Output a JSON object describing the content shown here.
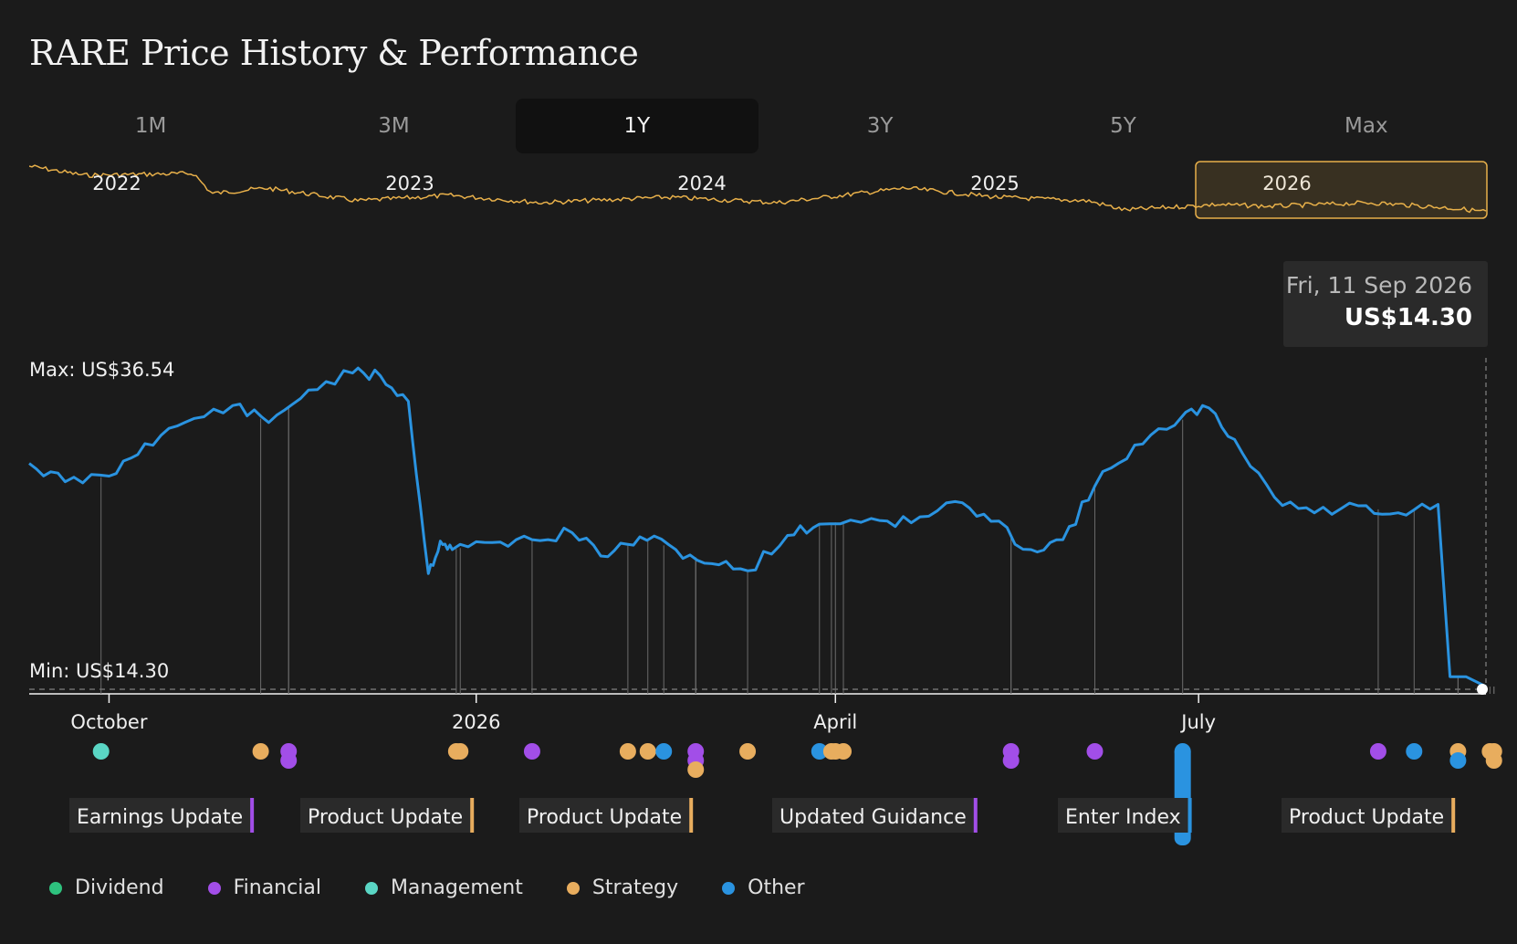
{
  "title": "RARE Price History & Performance",
  "tabs": [
    {
      "label": "1M",
      "active": false
    },
    {
      "label": "3M",
      "active": false
    },
    {
      "label": "1Y",
      "active": true
    },
    {
      "label": "3Y",
      "active": false
    },
    {
      "label": "5Y",
      "active": false
    },
    {
      "label": "Max",
      "active": false
    }
  ],
  "navigator": {
    "years": [
      "2022",
      "2023",
      "2024",
      "2025",
      "2026"
    ],
    "selected_year": "2026",
    "line_color": "#e8b04a"
  },
  "tooltip": {
    "date": "Fri, 11 Sep 2026",
    "price": "US$14.30"
  },
  "max_label": "Max: US$36.54",
  "min_label": "Min: US$14.30",
  "chart_data": {
    "type": "line",
    "title": "RARE Price History & Performance",
    "series_color": "#2a93e0",
    "ylim": [
      14.3,
      36.54
    ],
    "x_ticks": [
      "October",
      "2026",
      "April",
      "July"
    ],
    "x_tick_dates": [
      "2025-10-01",
      "2026-01-01",
      "2026-04-01",
      "2026-07-01"
    ],
    "x_range": [
      "2025-09-11",
      "2026-09-11"
    ],
    "x": [
      "2025-09-11",
      "2025-09-20",
      "2025-10-01",
      "2025-10-10",
      "2025-10-20",
      "2025-11-01",
      "2025-11-10",
      "2025-11-20",
      "2025-12-01",
      "2025-12-08",
      "2025-12-15",
      "2025-12-20",
      "2025-12-23",
      "2025-12-26",
      "2026-01-05",
      "2026-01-15",
      "2026-01-25",
      "2026-02-03",
      "2026-02-11",
      "2026-02-20",
      "2026-03-01",
      "2026-03-10",
      "2026-03-20",
      "2026-03-28",
      "2026-04-10",
      "2026-04-20",
      "2026-05-01",
      "2026-05-10",
      "2026-05-20",
      "2026-05-28",
      "2026-06-05",
      "2026-06-15",
      "2026-06-25",
      "2026-07-02",
      "2026-07-10",
      "2026-07-20",
      "2026-07-30",
      "2026-08-10",
      "2026-08-20",
      "2026-08-30",
      "2026-09-02",
      "2026-09-06",
      "2026-09-11"
    ],
    "values": [
      30.1,
      28.8,
      29.2,
      31.5,
      33.0,
      34.2,
      33.0,
      35.3,
      36.5,
      36.3,
      34.5,
      22.3,
      24.6,
      24.0,
      24.5,
      24.7,
      25.2,
      23.5,
      24.9,
      24.0,
      23.0,
      22.5,
      25.0,
      25.8,
      26.2,
      25.9,
      27.4,
      26.0,
      24.0,
      24.7,
      28.5,
      31.4,
      32.8,
      34.2,
      31.8,
      27.7,
      26.6,
      27.1,
      26.6,
      27.2,
      15.0,
      15.0,
      14.3
    ],
    "events": [
      {
        "date": "2025-09-29",
        "category": "Management"
      },
      {
        "date": "2025-11-08",
        "category": "Strategy"
      },
      {
        "date": "2025-11-15",
        "category": "Financial"
      },
      {
        "date": "2025-11-15",
        "category": "Financial"
      },
      {
        "date": "2025-12-27",
        "category": "Strategy"
      },
      {
        "date": "2025-12-28",
        "category": "Strategy"
      },
      {
        "date": "2026-01-15",
        "category": "Financial"
      },
      {
        "date": "2026-02-08",
        "category": "Strategy"
      },
      {
        "date": "2026-02-13",
        "category": "Strategy"
      },
      {
        "date": "2026-02-17",
        "category": "Other"
      },
      {
        "date": "2026-02-25",
        "category": "Financial"
      },
      {
        "date": "2026-02-25",
        "category": "Financial"
      },
      {
        "date": "2026-02-25",
        "category": "Strategy"
      },
      {
        "date": "2026-03-10",
        "category": "Strategy"
      },
      {
        "date": "2026-04-01",
        "category": "Strategy"
      },
      {
        "date": "2026-03-28",
        "category": "Other"
      },
      {
        "date": "2026-03-31",
        "category": "Strategy"
      },
      {
        "date": "2026-04-03",
        "category": "Strategy"
      },
      {
        "date": "2026-05-15",
        "category": "Financial"
      },
      {
        "date": "2026-05-15",
        "category": "Financial"
      },
      {
        "date": "2026-06-05",
        "category": "Financial"
      },
      {
        "date": "2026-06-27",
        "category": "Other"
      },
      {
        "date": "2026-08-15",
        "category": "Financial"
      },
      {
        "date": "2026-08-24",
        "category": "Other"
      },
      {
        "date": "2026-09-04",
        "category": "Strategy"
      },
      {
        "date": "2026-09-04",
        "category": "Other"
      },
      {
        "date": "2026-09-12",
        "category": "Strategy"
      },
      {
        "date": "2026-09-13",
        "category": "Strategy"
      },
      {
        "date": "2026-09-13",
        "category": "Strategy"
      }
    ],
    "event_labels": [
      {
        "text": "Earnings Update",
        "category": "Financial"
      },
      {
        "text": "Product Update",
        "category": "Strategy"
      },
      {
        "text": "Product Update",
        "category": "Strategy"
      },
      {
        "text": "Updated Guidance",
        "category": "Financial"
      },
      {
        "text": "Enter Index",
        "category": "Other"
      },
      {
        "text": "Product Update",
        "category": "Strategy"
      }
    ]
  },
  "legend": [
    {
      "label": "Dividend",
      "color": "#2ec27e"
    },
    {
      "label": "Financial",
      "color": "#a24ee8"
    },
    {
      "label": "Management",
      "color": "#5ad6c4"
    },
    {
      "label": "Strategy",
      "color": "#e8ad5e"
    },
    {
      "label": "Other",
      "color": "#2a93e0"
    }
  ]
}
